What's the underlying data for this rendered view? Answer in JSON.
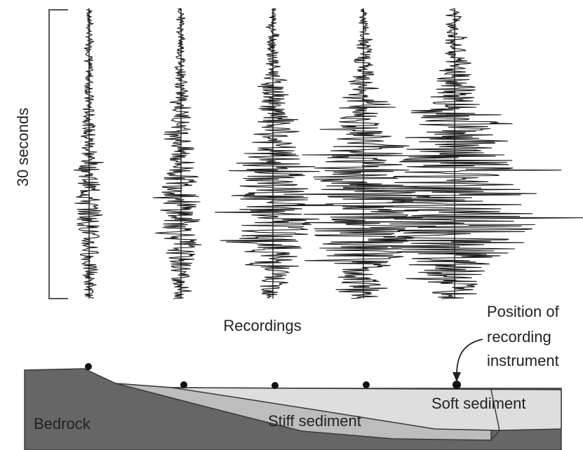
{
  "labels": {
    "time_scale": "30 seconds",
    "recordings": "Recordings",
    "instrument_line1": "Position of",
    "instrument_line2": "recording",
    "instrument_line3": "instrument",
    "bedrock": "Bedrock",
    "stiff_sediment": "Stiff sediment",
    "soft_sediment": "Soft sediment"
  },
  "recordings": [
    {
      "station": 1,
      "relative_amplitude": 0.12
    },
    {
      "station": 2,
      "relative_amplitude": 0.22
    },
    {
      "station": 3,
      "relative_amplitude": 0.45
    },
    {
      "station": 4,
      "relative_amplitude": 0.7
    },
    {
      "station": 5,
      "relative_amplitude": 1.0
    }
  ],
  "colors": {
    "bedrock": "#666666",
    "stiff_sediment": "#bdbdbd",
    "soft_sediment": "#dedede",
    "trace": "#1a1a1a",
    "text": "#222222"
  }
}
